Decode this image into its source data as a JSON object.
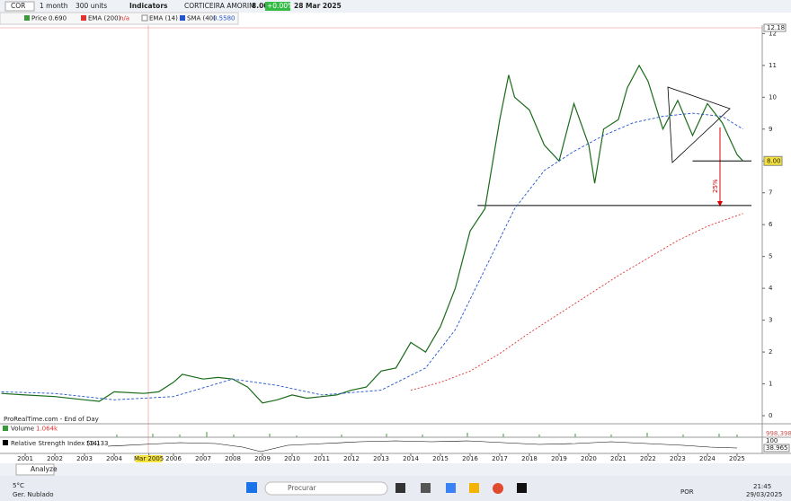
{
  "toolbar": {
    "symbol": "COR",
    "period": "1 month",
    "units": "300 units",
    "indicators": "Indicators",
    "name": "CORTICEIRA AMORIM",
    "last": "8.00",
    "change": "+0.00%",
    "date": "28 Mar 2025"
  },
  "legend": {
    "price": "Price",
    "price_value": "0.690",
    "ema200": "EMA (200)",
    "ema200_value": "n/a",
    "ema14": "EMA (14)",
    "sma40": "SMA (40)",
    "sma40_value": "0.5580"
  },
  "chart": {
    "ylim": [
      0,
      12.18
    ],
    "xlim": [
      2000.15,
      2025.85
    ],
    "yticks": [
      0,
      1,
      2,
      3,
      4,
      5,
      6,
      7,
      8,
      9,
      10,
      11,
      12
    ],
    "top_label": 12.18,
    "last_price": {
      "value": 8,
      "label": "8.00"
    },
    "xticks": [
      2001,
      2002,
      2003,
      2004,
      {
        "value": 2005.17,
        "label": "Mar 2005"
      },
      2006,
      2007,
      2008,
      2009,
      2010,
      2011,
      2012,
      2013,
      2014,
      2015,
      2016,
      2017,
      2018,
      2019,
      2020,
      2021,
      2022,
      2023,
      2024,
      2025
    ],
    "series": [
      {
        "name": "Price",
        "color": "#1a6b1a",
        "x": [
          2000.2,
          2001,
          2002,
          2003,
          2003.5,
          2004,
          2005,
          2005.5,
          2006,
          2006.3,
          2007,
          2007.5,
          2008,
          2008.5,
          2009,
          2009.5,
          2010,
          2010.5,
          2011,
          2011.5,
          2012,
          2012.5,
          2013,
          2013.5,
          2014,
          2014.5,
          2015,
          2015.5,
          2016,
          2016.5,
          2017,
          2017.3,
          2017.5,
          2018,
          2018.5,
          2019,
          2019.5,
          2020,
          2020.2,
          2020.5,
          2021,
          2021.3,
          2021.7,
          2022,
          2022.5,
          2023,
          2023.5,
          2024,
          2024.5,
          2025,
          2025.2
        ],
        "values": [
          0.7,
          0.65,
          0.6,
          0.5,
          0.45,
          0.75,
          0.7,
          0.75,
          1.05,
          1.3,
          1.15,
          1.2,
          1.15,
          0.9,
          0.4,
          0.5,
          0.65,
          0.55,
          0.6,
          0.65,
          0.8,
          0.9,
          1.4,
          1.5,
          2.3,
          2.0,
          2.8,
          4.0,
          5.8,
          6.5,
          9.3,
          10.7,
          10.0,
          9.6,
          8.5,
          8.0,
          9.8,
          8.5,
          7.3,
          9.0,
          9.3,
          10.3,
          11.0,
          10.5,
          9.0,
          9.9,
          8.8,
          9.8,
          9.2,
          8.2,
          8.0
        ]
      },
      {
        "name": "SMA (40)",
        "color": "#2255cc",
        "x": [
          2000.2,
          2002,
          2004,
          2006,
          2008,
          2009.5,
          2011,
          2013,
          2014.5,
          2015.5,
          2016.5,
          2017.5,
          2018.5,
          2019.5,
          2020.5,
          2021.5,
          2022.5,
          2023.5,
          2024.5,
          2025.2
        ],
        "values": [
          0.75,
          0.7,
          0.5,
          0.6,
          1.15,
          0.95,
          0.65,
          0.8,
          1.5,
          2.7,
          4.6,
          6.5,
          7.7,
          8.3,
          8.8,
          9.2,
          9.4,
          9.5,
          9.4,
          9.0
        ]
      },
      {
        "name": "EMA (200)",
        "color": "#dd3333",
        "x": [
          2014,
          2015,
          2016,
          2017,
          2018,
          2019,
          2020,
          2021,
          2022,
          2023,
          2024,
          2025.2
        ],
        "values": [
          0.8,
          1.05,
          1.4,
          1.95,
          2.6,
          3.2,
          3.8,
          4.4,
          4.95,
          5.5,
          5.95,
          6.35
        ]
      }
    ],
    "levels": [
      {
        "value": 8,
        "from": 2023.5,
        "to": 2026.5
      },
      {
        "value": 6.6,
        "from": 2016.25,
        "to": 2026.5
      }
    ],
    "annotation": "25%",
    "source": "ProRealTime.com - End of Day"
  },
  "volume": {
    "label": "Volume",
    "value": "1.064k",
    "axis": "998,398"
  },
  "rsi": {
    "label": "Relative Strength Index (14)",
    "value": "59.133",
    "top": "100",
    "last": "38.965"
  },
  "bottom": {
    "analyze": "Analyze"
  },
  "taskbar": {
    "temp": "5°C",
    "weather": "Ger. Nublado",
    "search": "Procurar",
    "lang": "POR",
    "time": "21:45",
    "date": "29/03/2025"
  }
}
